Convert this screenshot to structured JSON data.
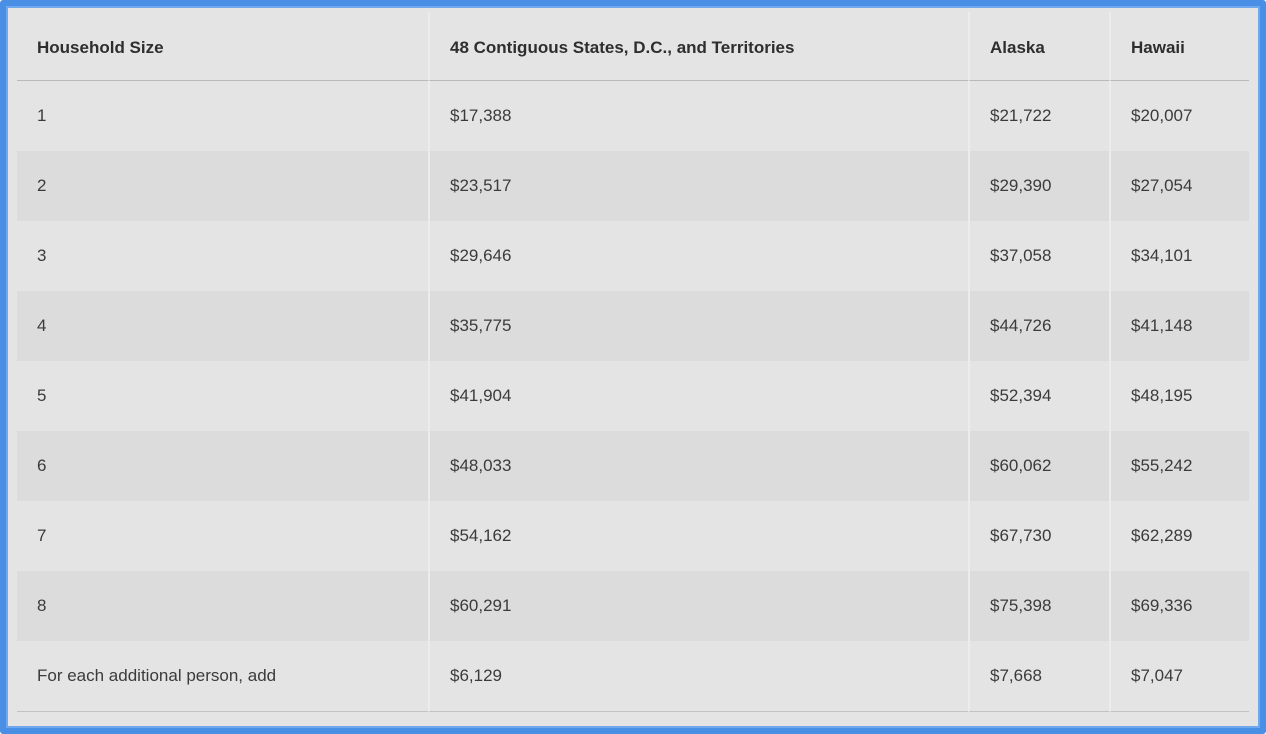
{
  "table": {
    "headers": [
      "Household Size",
      "48 Contiguous States, D.C., and Territories",
      "Alaska",
      "Hawaii"
    ],
    "rows": [
      [
        "1",
        "$17,388",
        "$21,722",
        "$20,007"
      ],
      [
        "2",
        "$23,517",
        "$29,390",
        "$27,054"
      ],
      [
        "3",
        "$29,646",
        "$37,058",
        "$34,101"
      ],
      [
        "4",
        "$35,775",
        "$44,726",
        "$41,148"
      ],
      [
        "5",
        "$41,904",
        "$52,394",
        "$48,195"
      ],
      [
        "6",
        "$48,033",
        "$60,062",
        "$55,242"
      ],
      [
        "7",
        "$54,162",
        "$67,730",
        "$62,289"
      ],
      [
        "8",
        "$60,291",
        "$75,398",
        "$69,336"
      ],
      [
        "For each additional person, add",
        "$6,129",
        "$7,668",
        "$7,047"
      ]
    ]
  },
  "colors": {
    "frame_border": "#4a8fe6",
    "background": "#e4e4e4",
    "row_stripe": "#dcdcdc",
    "text": "#3b3b3b"
  }
}
